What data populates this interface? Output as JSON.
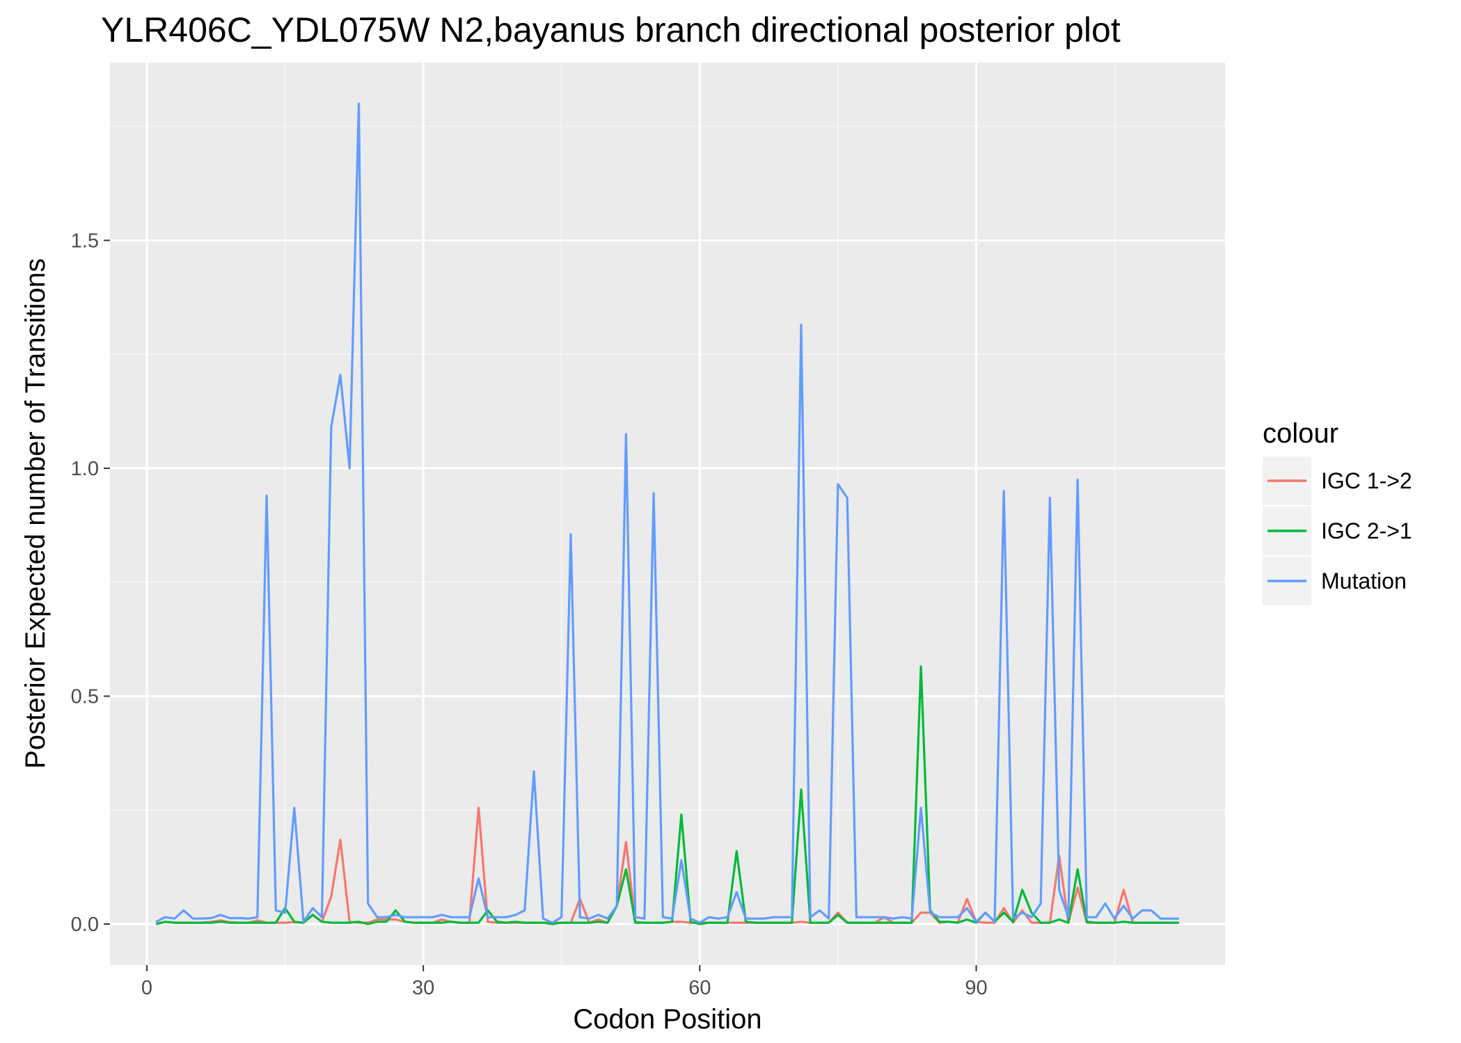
{
  "chart_data": {
    "type": "line",
    "title": "YLR406C_YDL075W N2,bayanus branch directional posterior plot",
    "xlabel": "Codon Position",
    "ylabel": "Posterior Expected number of Transitions",
    "xlim": [
      -4,
      117
    ],
    "ylim": [
      -0.09,
      1.89
    ],
    "x_ticks": [
      0,
      30,
      60,
      90
    ],
    "x_tick_labels": [
      "0",
      "30",
      "60",
      "90"
    ],
    "y_ticks": [
      0,
      0.5,
      1,
      1.5
    ],
    "y_tick_labels": [
      "0.0",
      "0.5",
      "1.0",
      "1.5"
    ],
    "grid": true,
    "legend": {
      "title": "colour",
      "position": "right"
    },
    "x": [
      1,
      2,
      3,
      4,
      5,
      6,
      7,
      8,
      9,
      10,
      11,
      12,
      13,
      14,
      15,
      16,
      17,
      18,
      19,
      20,
      21,
      22,
      23,
      24,
      25,
      26,
      27,
      28,
      29,
      30,
      31,
      32,
      33,
      34,
      35,
      36,
      37,
      38,
      39,
      40,
      41,
      42,
      43,
      44,
      45,
      46,
      47,
      48,
      49,
      50,
      51,
      52,
      53,
      54,
      55,
      56,
      57,
      58,
      59,
      60,
      61,
      62,
      63,
      64,
      65,
      66,
      67,
      68,
      69,
      70,
      71,
      72,
      73,
      74,
      75,
      76,
      77,
      78,
      79,
      80,
      81,
      82,
      83,
      84,
      85,
      86,
      87,
      88,
      89,
      90,
      91,
      92,
      93,
      94,
      95,
      96,
      97,
      98,
      99,
      100,
      101,
      102,
      103,
      104,
      105,
      106,
      107,
      108,
      109,
      110,
      111,
      112
    ],
    "series": [
      {
        "name": "IGC 1->2",
        "color": "#F8766D",
        "values": [
          0.0,
          0.005,
          0.003,
          0.003,
          0.003,
          0.003,
          0.005,
          0.008,
          0.004,
          0.003,
          0.003,
          0.008,
          0.003,
          0.003,
          0.003,
          0.004,
          0.003,
          0.02,
          0.005,
          0.06,
          0.185,
          0.005,
          0.003,
          0.003,
          0.01,
          0.01,
          0.01,
          0.005,
          0.003,
          0.003,
          0.003,
          0.01,
          0.005,
          0.003,
          0.003,
          0.255,
          0.005,
          0.003,
          0.003,
          0.003,
          0.003,
          0.003,
          0.003,
          0.003,
          0.003,
          0.003,
          0.055,
          0.003,
          0.01,
          0.003,
          0.04,
          0.18,
          0.005,
          0.003,
          0.003,
          0.003,
          0.005,
          0.005,
          0.003,
          0.003,
          0.003,
          0.003,
          0.003,
          0.003,
          0.003,
          0.003,
          0.003,
          0.003,
          0.003,
          0.003,
          0.005,
          0.003,
          0.003,
          0.003,
          0.025,
          0.003,
          0.003,
          0.003,
          0.003,
          0.015,
          0.003,
          0.003,
          0.003,
          0.025,
          0.025,
          0.003,
          0.005,
          0.003,
          0.055,
          0.005,
          0.003,
          0.003,
          0.035,
          0.003,
          0.03,
          0.003,
          0.003,
          0.003,
          0.15,
          0.003,
          0.08,
          0.003,
          0.003,
          0.003,
          0.003,
          0.075,
          0.003,
          0.003,
          0.003,
          0.003,
          0.003,
          0.003
        ]
      },
      {
        "name": "IGC 2->1",
        "color": "#00BA38",
        "values": [
          0.0,
          0.005,
          0.003,
          0.003,
          0.003,
          0.003,
          0.003,
          0.005,
          0.003,
          0.003,
          0.003,
          0.003,
          0.003,
          0.003,
          0.035,
          0.005,
          0.003,
          0.02,
          0.005,
          0.003,
          0.003,
          0.003,
          0.005,
          0.0,
          0.005,
          0.005,
          0.03,
          0.005,
          0.003,
          0.003,
          0.003,
          0.003,
          0.005,
          0.003,
          0.003,
          0.003,
          0.03,
          0.005,
          0.003,
          0.005,
          0.003,
          0.003,
          0.003,
          0.0,
          0.003,
          0.003,
          0.003,
          0.003,
          0.005,
          0.003,
          0.04,
          0.12,
          0.003,
          0.003,
          0.003,
          0.003,
          0.005,
          0.24,
          0.005,
          0.0,
          0.003,
          0.003,
          0.003,
          0.16,
          0.005,
          0.003,
          0.003,
          0.003,
          0.003,
          0.003,
          0.295,
          0.003,
          0.003,
          0.003,
          0.02,
          0.003,
          0.003,
          0.003,
          0.003,
          0.003,
          0.003,
          0.003,
          0.003,
          0.565,
          0.03,
          0.005,
          0.005,
          0.003,
          0.01,
          0.003,
          0.025,
          0.005,
          0.025,
          0.005,
          0.075,
          0.025,
          0.003,
          0.003,
          0.01,
          0.003,
          0.12,
          0.005,
          0.003,
          0.003,
          0.003,
          0.005,
          0.003,
          0.003,
          0.003,
          0.003,
          0.003,
          0.003
        ]
      },
      {
        "name": "Mutation",
        "color": "#619CFF",
        "values": [
          0.005,
          0.015,
          0.012,
          0.03,
          0.012,
          0.012,
          0.013,
          0.02,
          0.013,
          0.013,
          0.012,
          0.015,
          0.94,
          0.03,
          0.025,
          0.255,
          0.005,
          0.035,
          0.015,
          1.09,
          1.205,
          1.0,
          1.8,
          0.045,
          0.015,
          0.015,
          0.02,
          0.015,
          0.015,
          0.015,
          0.015,
          0.02,
          0.015,
          0.015,
          0.015,
          0.1,
          0.015,
          0.015,
          0.015,
          0.02,
          0.03,
          0.335,
          0.012,
          0.003,
          0.015,
          0.855,
          0.015,
          0.012,
          0.02,
          0.012,
          0.04,
          1.075,
          0.015,
          0.012,
          0.945,
          0.015,
          0.012,
          0.14,
          0.012,
          0.003,
          0.015,
          0.012,
          0.015,
          0.07,
          0.012,
          0.012,
          0.012,
          0.015,
          0.015,
          0.015,
          1.315,
          0.015,
          0.03,
          0.012,
          0.965,
          0.935,
          0.015,
          0.015,
          0.015,
          0.015,
          0.012,
          0.015,
          0.012,
          0.255,
          0.025,
          0.015,
          0.015,
          0.015,
          0.035,
          0.005,
          0.025,
          0.005,
          0.95,
          0.012,
          0.025,
          0.015,
          0.045,
          0.935,
          0.075,
          0.015,
          0.975,
          0.015,
          0.015,
          0.045,
          0.012,
          0.04,
          0.012,
          0.03,
          0.03,
          0.012,
          0.012,
          0.012
        ]
      }
    ]
  }
}
